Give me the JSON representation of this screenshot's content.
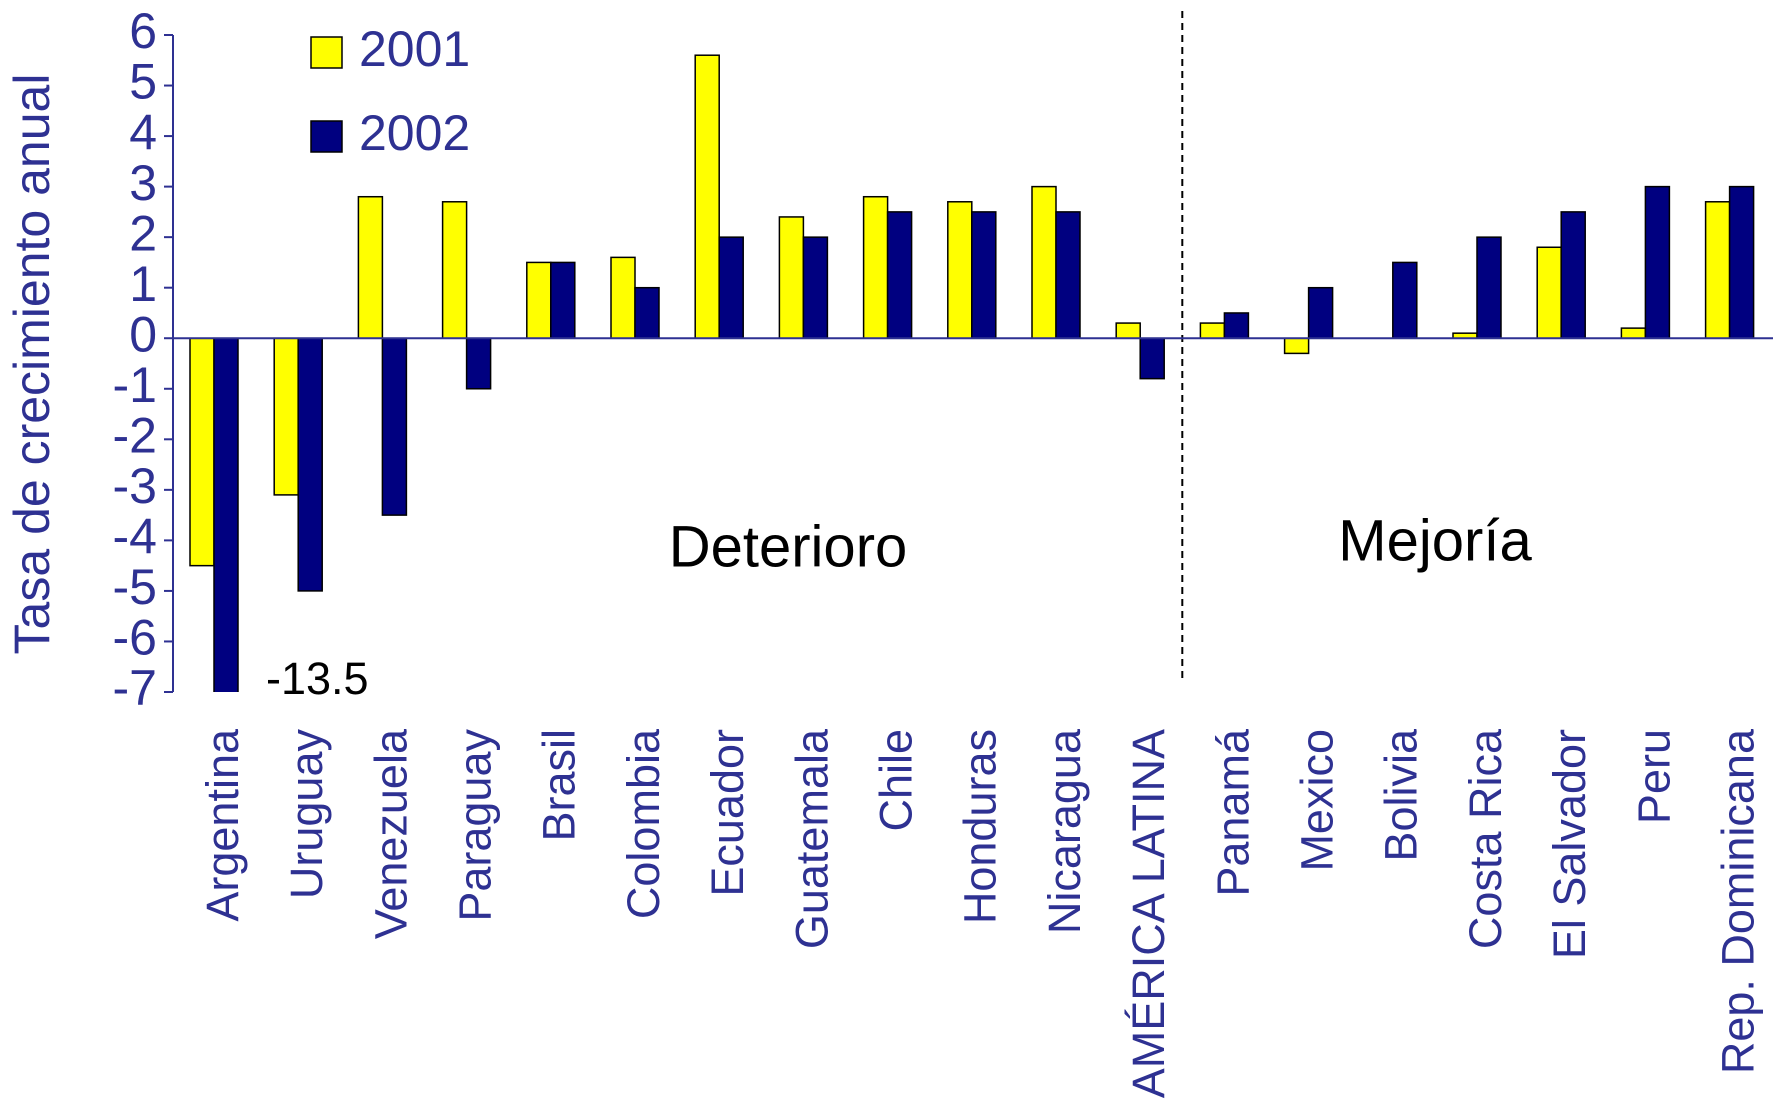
{
  "chart_data": {
    "type": "bar",
    "y_label": "Tasa de crecimiento anual",
    "categories": [
      "Argentina",
      "Uruguay",
      "Venezuela",
      "Paraguay",
      "Brasil",
      "Colombia",
      "Ecuador",
      "Guatemala",
      "Chile",
      "Honduras",
      "Nicaragua",
      "AMÉRICA LATINA",
      "Panamá",
      "Mexico",
      "Bolivia",
      "Costa Rica",
      "El Salvador",
      "Peru",
      "Rep. Dominicana"
    ],
    "series": [
      {
        "name": "2001",
        "color": "#ffff00",
        "values": [
          -4.5,
          -3.1,
          2.8,
          2.7,
          1.5,
          1.6,
          5.6,
          2.4,
          2.8,
          2.7,
          3.0,
          0.3,
          0.3,
          -0.3,
          null,
          0.1,
          1.8,
          0.2,
          2.7
        ]
      },
      {
        "name": "2002",
        "color": "#000080",
        "values": [
          -13.5,
          -5.0,
          -3.5,
          -1.0,
          1.5,
          1.0,
          2.0,
          2.0,
          2.5,
          2.5,
          2.5,
          -0.8,
          0.5,
          1.0,
          1.5,
          2.0,
          2.5,
          3.0,
          3.0
        ],
        "value_labels": [
          "-13.5",
          null,
          null,
          null,
          null,
          null,
          null,
          null,
          null,
          null,
          null,
          null,
          null,
          null,
          null,
          null,
          null,
          null,
          null
        ]
      }
    ],
    "ylim": [
      -7,
      6
    ],
    "yticks": [
      -7,
      -6,
      -5,
      -4,
      -3,
      -2,
      -1,
      0,
      1,
      2,
      3,
      4,
      5,
      6
    ],
    "annotations": [
      "Deterioro",
      "Mejoría"
    ]
  }
}
